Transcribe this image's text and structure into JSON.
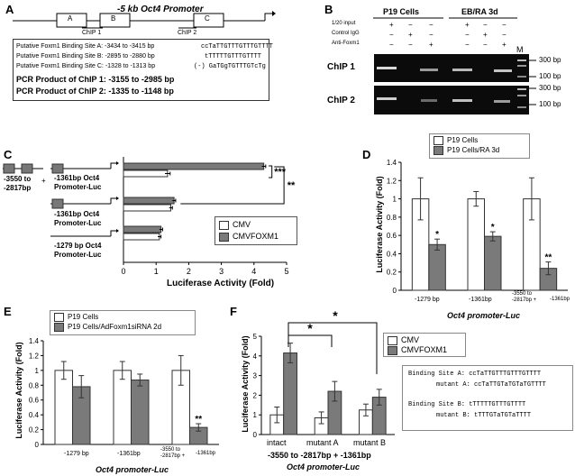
{
  "panels": {
    "A": {
      "label": "A",
      "title": "-5 kb Oct4 Promoter",
      "sites": [
        "A",
        "B",
        "C"
      ],
      "chip_labels": [
        "ChIP 1",
        "ChIP 2"
      ],
      "binding_lines": [
        {
          "text": "Putative Foxm1 Binding Site A: -3434 to -3415 bp",
          "seq": "ccTaTTGTTTGTTTGTTTT"
        },
        {
          "text": "Putative Foxm1 Binding Site B: -2895 to -2880 bp",
          "seq": "tTTTTTGTTTGTTTT"
        },
        {
          "text": "Putative Foxm1 Binding Site C: -1328 to -1313 bp",
          "seq": "(-) GaTGgTGTTTGTcTg"
        }
      ],
      "pcr_lines": [
        "PCR Product of ChIP 1: -3155 to -2985 bp",
        "PCR Product of ChIP 2: -1335 to -1148 bp"
      ]
    },
    "B": {
      "label": "B",
      "groups": [
        "P19 Cells",
        "EB/RA 3d"
      ],
      "row_labels": [
        "1/20 input",
        "Control IgG",
        "Anti-Foxm1"
      ],
      "signs": [
        [
          "+",
          "−",
          "−",
          "+",
          "−",
          "−"
        ],
        [
          "−",
          "+",
          "−",
          "−",
          "+",
          "−"
        ],
        [
          "−",
          "−",
          "+",
          "−",
          "−",
          "+"
        ]
      ],
      "marker": "M",
      "gel_labels": [
        "ChIP 1",
        "ChIP 2"
      ],
      "sizes": [
        "300 bp",
        "100 bp",
        "300 bp",
        "100 bp"
      ]
    },
    "C": {
      "label": "C",
      "constructs": [
        {
          "line1": "-3550 to",
          "line2": "-2817bp",
          "plus": "+",
          "line3": "-1361bp Oct4",
          "line4": "Promoter-Luc"
        },
        {
          "line1": "-1361bp Oct4",
          "line2": "Promoter-Luc"
        },
        {
          "line1": "-1279 bp Oct4",
          "line2": "Promoter-Luc"
        }
      ],
      "xlabel": "Luciferase Activity (Fold)",
      "legend": [
        "CMV",
        "CMVFOXM1"
      ],
      "sig_inner": "***",
      "sig_outer": "**"
    },
    "D": {
      "label": "D",
      "legend": [
        "P19 Cells",
        "P19 Cells/RA 3d"
      ],
      "ylabel": "Luciferase Activity (Fold)",
      "xlabel": "Oct4 promoter-Luc",
      "categories": [
        "-1279 bp",
        "-1361bp",
        "-3550 to -2817bp +",
        "-1361bp"
      ]
    },
    "E": {
      "label": "E",
      "legend": [
        "P19 Cells",
        "P19 Cells/AdFoxm1siRNA 2d"
      ],
      "ylabel": "Luciferase Activity (Fold)",
      "xlabel": "Oct4 promoter-Luc",
      "categories": [
        "-1279 bp",
        "-1361bp",
        "-3550 to -2817bp +",
        "-1361bp"
      ]
    },
    "F": {
      "label": "F",
      "legend": [
        "CMV",
        "CMVFOXM1"
      ],
      "ylabel": "Luciferase Activity (Fold)",
      "categories": [
        "intact",
        "mutant A",
        "mutant B"
      ],
      "xlabel1": "-3550 to -2817bp + -1361bp",
      "xlabel2": "Oct4 promoter-Luc",
      "sig": "*",
      "mut_lines": [
        {
          "label": "Binding Site A:",
          "seq": "ccTaTTGTTTGTTTGTTTT"
        },
        {
          "label": "mutant A:",
          "seq": "ccTaTTGTaTGTaTGTTTT"
        },
        {
          "label": "Binding Site B:",
          "seq": "tTTTTTGTTTGTTTT"
        },
        {
          "label": "mutant B:",
          "seq": "tTTTGTaTGTaTTTT"
        }
      ]
    }
  },
  "chart_data": [
    {
      "id": "C",
      "type": "bar",
      "orientation": "horizontal",
      "categories": [
        "-3550 to -2817bp + -1361bp Oct4 Promoter-Luc",
        "-1361bp Oct4 Promoter-Luc",
        "-1279 bp Oct4 Promoter-Luc"
      ],
      "series": [
        {
          "name": "CMV",
          "values": [
            1.35,
            1.45,
            1.1
          ],
          "errors": [
            0.08,
            0.05,
            0.05
          ]
        },
        {
          "name": "CMVFOXM1",
          "values": [
            4.3,
            1.55,
            1.15
          ],
          "errors": [
            0.06,
            0.05,
            0.05
          ]
        }
      ],
      "xlabel": "Luciferase Activity (Fold)",
      "xlim": [
        0,
        5
      ],
      "xticks": [
        0,
        1,
        2,
        3,
        4,
        5
      ]
    },
    {
      "id": "D",
      "type": "bar",
      "categories": [
        "-1279 bp",
        "-1361bp",
        "-3550 to -2817bp + -1361bp"
      ],
      "series": [
        {
          "name": "P19 Cells",
          "values": [
            1.0,
            1.0,
            1.0
          ],
          "errors": [
            0.23,
            0.08,
            0.23
          ]
        },
        {
          "name": "P19 Cells/RA 3d",
          "values": [
            0.5,
            0.59,
            0.24
          ],
          "errors": [
            0.06,
            0.05,
            0.07
          ]
        }
      ],
      "significance": [
        "*",
        "*",
        "**"
      ],
      "ylabel": "Luciferase Activity (Fold)",
      "ylim": [
        0,
        1.4
      ],
      "yticks": [
        0,
        0.2,
        0.4,
        0.6,
        0.8,
        1,
        1.2,
        1.4
      ]
    },
    {
      "id": "E",
      "type": "bar",
      "categories": [
        "-1279 bp",
        "-1361bp",
        "-3550 to -2817bp + -1361bp"
      ],
      "series": [
        {
          "name": "P19 Cells",
          "values": [
            1.0,
            1.0,
            1.0
          ],
          "errors": [
            0.12,
            0.12,
            0.2
          ]
        },
        {
          "name": "P19 Cells/AdFoxm1siRNA 2d",
          "values": [
            0.78,
            0.87,
            0.23
          ],
          "errors": [
            0.15,
            0.08,
            0.05
          ]
        }
      ],
      "significance": [
        "",
        "",
        "**"
      ],
      "ylabel": "Luciferase Activity (Fold)",
      "ylim": [
        0,
        1.4
      ],
      "yticks": [
        0,
        0.2,
        0.4,
        0.6,
        0.8,
        1,
        1.2,
        1.4
      ]
    },
    {
      "id": "F",
      "type": "bar",
      "categories": [
        "intact",
        "mutant A",
        "mutant B"
      ],
      "series": [
        {
          "name": "CMV",
          "values": [
            1.0,
            0.85,
            1.25
          ],
          "errors": [
            0.4,
            0.3,
            0.3
          ]
        },
        {
          "name": "CMVFOXM1",
          "values": [
            4.15,
            2.2,
            1.9
          ],
          "errors": [
            0.5,
            0.5,
            0.4
          ]
        }
      ],
      "ylabel": "Luciferase Activity (Fold)",
      "ylim": [
        0,
        5
      ],
      "yticks": [
        0,
        1,
        2,
        3,
        4,
        5
      ]
    }
  ]
}
